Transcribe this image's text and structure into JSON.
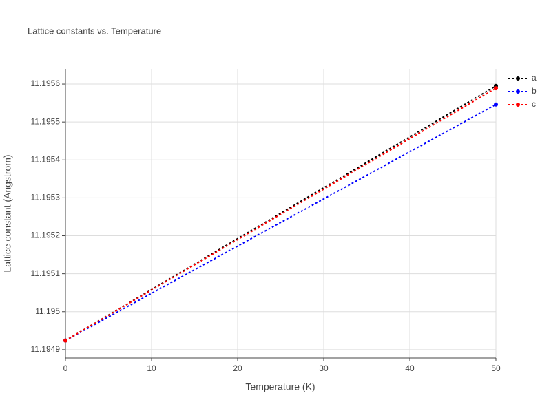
{
  "chart_data": {
    "type": "line",
    "title": "Lattice constants vs. Temperature",
    "x_label": "Temperature (K)",
    "y_label": "Lattice constant (Angstrom)",
    "x": [
      0,
      50
    ],
    "series": [
      {
        "name": "a",
        "color": "#000000",
        "values": [
          11.194924,
          11.195595
        ]
      },
      {
        "name": "b",
        "color": "#0000ff",
        "values": [
          11.194924,
          11.195546
        ]
      },
      {
        "name": "c",
        "color": "#ff0000",
        "values": [
          11.194924,
          11.195589
        ]
      }
    ],
    "xlim": [
      0,
      50
    ],
    "xticks": [
      0,
      10,
      20,
      30,
      40,
      50
    ],
    "ylim": [
      11.194878,
      11.19564
    ],
    "yticks": [
      11.1949,
      11.195,
      11.1951,
      11.1952,
      11.1953,
      11.1954,
      11.1955,
      11.1956
    ],
    "grid": true,
    "legend": "right"
  }
}
